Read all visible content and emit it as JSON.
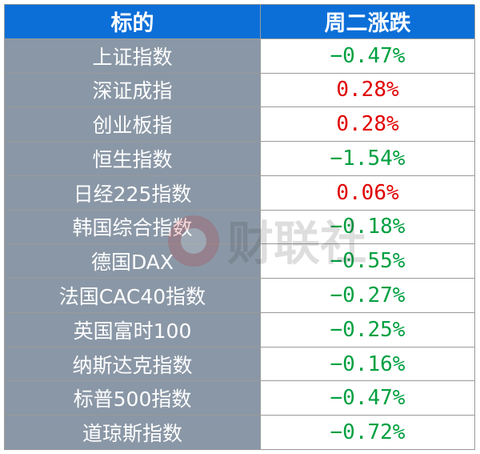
{
  "header": {
    "name_col": "标的",
    "change_col": "周二涨跌"
  },
  "rows": [
    {
      "name": "上证指数",
      "change": "−0.47%",
      "direction": "down"
    },
    {
      "name": "深证成指",
      "change": "0.28%",
      "direction": "up"
    },
    {
      "name": "创业板指",
      "change": "0.28%",
      "direction": "up"
    },
    {
      "name": "恒生指数",
      "change": "−1.54%",
      "direction": "down"
    },
    {
      "name": "日经225指数",
      "change": "0.06%",
      "direction": "up"
    },
    {
      "name": "韩国综合指数",
      "change": "−0.18%",
      "direction": "down"
    },
    {
      "name": "德国DAX",
      "change": "−0.55%",
      "direction": "down"
    },
    {
      "name": "法国CAC40指数",
      "change": "−0.27%",
      "direction": "down"
    },
    {
      "name": "英国富时100",
      "change": "−0.25%",
      "direction": "down"
    },
    {
      "name": "纳斯达克指数",
      "change": "−0.16%",
      "direction": "down"
    },
    {
      "name": "标普500指数",
      "change": "−0.47%",
      "direction": "down"
    },
    {
      "name": "道琼斯指数",
      "change": "−0.72%",
      "direction": "down"
    }
  ],
  "watermark": {
    "text": "财联社",
    "icon": "cls-logo-icon"
  },
  "colors": {
    "header_bg": "#0c6fd8",
    "name_bg": "#8a97a6",
    "up": "#e00000",
    "down": "#00a040"
  }
}
